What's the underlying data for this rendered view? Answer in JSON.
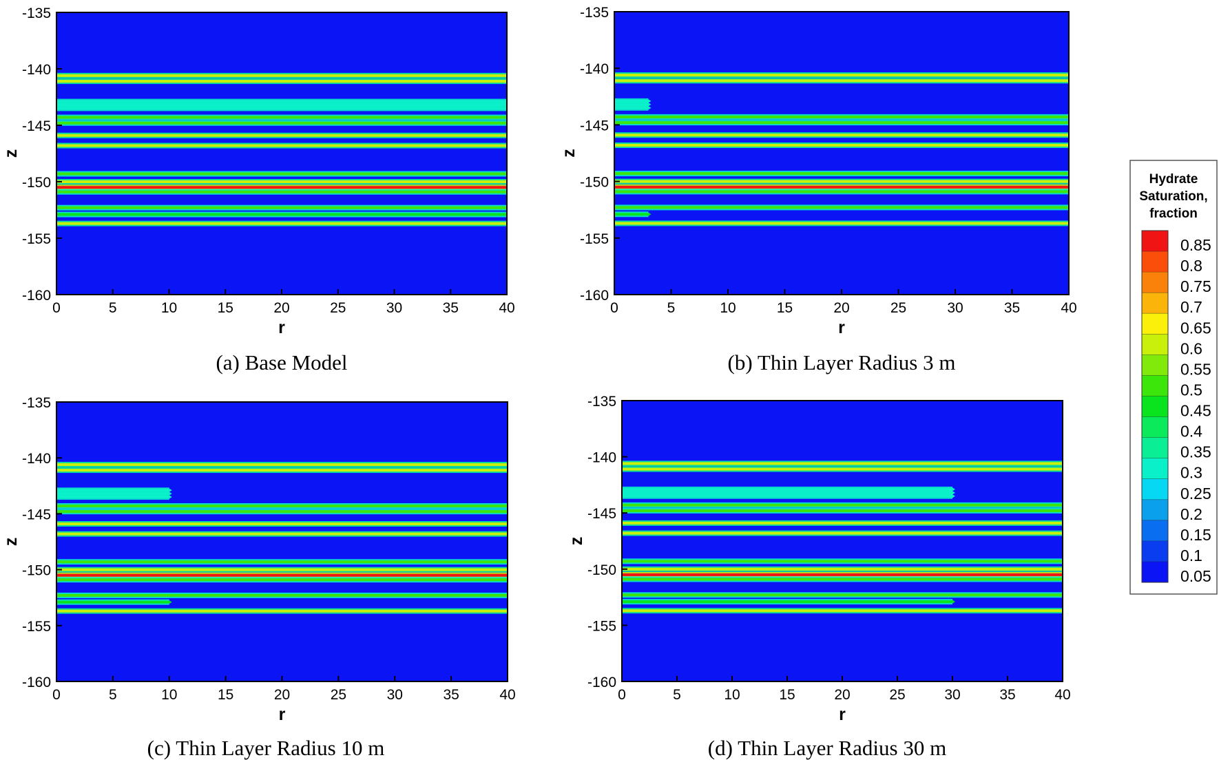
{
  "colors": {
    "background": "#0A14F5",
    "colormap": [
      "#0A14F5",
      "#0A3CF0",
      "#0A6EF0",
      "#0AA0EC",
      "#06D8F4",
      "#0AF0C8",
      "#0AEE96",
      "#0AEA5A",
      "#0AE41E",
      "#3CE60A",
      "#82EA0A",
      "#C8F00A",
      "#FAF00A",
      "#FAB40A",
      "#FA820A",
      "#FA4E0A",
      "#F01414"
    ]
  },
  "legend": {
    "title_lines": [
      "Hydrate",
      "Saturation,",
      "fraction"
    ],
    "levels": [
      "0.85",
      "0.8",
      "0.75",
      "0.7",
      "0.65",
      "0.6",
      "0.55",
      "0.5",
      "0.45",
      "0.4",
      "0.35",
      "0.3",
      "0.25",
      "0.2",
      "0.15",
      "0.1",
      "0.05"
    ]
  },
  "chart_data": [
    {
      "type": "heatmap",
      "caption": "(a) Base Model",
      "xlabel": "r",
      "ylabel": "z",
      "xlim": [
        0,
        40
      ],
      "ylim": [
        -160,
        -135
      ],
      "xticks": [
        0,
        5,
        10,
        15,
        20,
        25,
        30,
        35,
        40
      ],
      "yticks": [
        -135,
        -140,
        -145,
        -150,
        -155,
        -160
      ],
      "thin_layer_radius": 40,
      "layers": [
        {
          "z": -140.6,
          "saturation": 0.55,
          "extent": "full"
        },
        {
          "z": -141.1,
          "saturation": 0.55,
          "extent": "full"
        },
        {
          "z": -142.9,
          "saturation": 0.25,
          "extent": "thin"
        },
        {
          "z": -143.2,
          "saturation": 0.25,
          "extent": "thin"
        },
        {
          "z": -143.5,
          "saturation": 0.25,
          "extent": "thin"
        },
        {
          "z": -144.3,
          "saturation": 0.45,
          "extent": "full"
        },
        {
          "z": -144.8,
          "saturation": 0.45,
          "extent": "full"
        },
        {
          "z": -145.9,
          "saturation": 0.55,
          "extent": "full"
        },
        {
          "z": -146.8,
          "saturation": 0.55,
          "extent": "full"
        },
        {
          "z": -149.3,
          "saturation": 0.45,
          "extent": "full"
        },
        {
          "z": -150.0,
          "saturation": 0.55,
          "extent": "full"
        },
        {
          "z": -150.5,
          "saturation": 0.8,
          "extent": "full"
        },
        {
          "z": -150.9,
          "saturation": 0.45,
          "extent": "full"
        },
        {
          "z": -152.3,
          "saturation": 0.45,
          "extent": "full"
        },
        {
          "z": -152.9,
          "saturation": 0.4,
          "extent": "thin"
        },
        {
          "z": -153.7,
          "saturation": 0.55,
          "extent": "full"
        }
      ]
    },
    {
      "type": "heatmap",
      "caption": "(b) Thin Layer Radius 3 m",
      "xlabel": "r",
      "ylabel": "z",
      "xlim": [
        0,
        40
      ],
      "ylim": [
        -160,
        -135
      ],
      "xticks": [
        0,
        5,
        10,
        15,
        20,
        25,
        30,
        35,
        40
      ],
      "yticks": [
        -135,
        -140,
        -145,
        -150,
        -155,
        -160
      ],
      "thin_layer_radius": 3,
      "layers": [
        {
          "z": -140.6,
          "saturation": 0.55,
          "extent": "full"
        },
        {
          "z": -141.1,
          "saturation": 0.55,
          "extent": "full"
        },
        {
          "z": -142.9,
          "saturation": 0.25,
          "extent": "thin"
        },
        {
          "z": -143.2,
          "saturation": 0.25,
          "extent": "thin"
        },
        {
          "z": -143.5,
          "saturation": 0.25,
          "extent": "thin"
        },
        {
          "z": -144.3,
          "saturation": 0.45,
          "extent": "full"
        },
        {
          "z": -144.8,
          "saturation": 0.45,
          "extent": "full"
        },
        {
          "z": -145.9,
          "saturation": 0.55,
          "extent": "full"
        },
        {
          "z": -146.8,
          "saturation": 0.55,
          "extent": "full"
        },
        {
          "z": -149.3,
          "saturation": 0.45,
          "extent": "full"
        },
        {
          "z": -150.0,
          "saturation": 0.55,
          "extent": "full"
        },
        {
          "z": -150.5,
          "saturation": 0.8,
          "extent": "full"
        },
        {
          "z": -150.9,
          "saturation": 0.45,
          "extent": "full"
        },
        {
          "z": -152.3,
          "saturation": 0.45,
          "extent": "full"
        },
        {
          "z": -152.9,
          "saturation": 0.4,
          "extent": "thin"
        },
        {
          "z": -153.7,
          "saturation": 0.55,
          "extent": "full"
        }
      ]
    },
    {
      "type": "heatmap",
      "caption": "(c) Thin Layer Radius 10 m",
      "xlabel": "r",
      "ylabel": "z",
      "xlim": [
        0,
        40
      ],
      "ylim": [
        -160,
        -135
      ],
      "xticks": [
        0,
        5,
        10,
        15,
        20,
        25,
        30,
        35,
        40
      ],
      "yticks": [
        -135,
        -140,
        -145,
        -150,
        -155,
        -160
      ],
      "thin_layer_radius": 10,
      "layers": [
        {
          "z": -140.6,
          "saturation": 0.55,
          "extent": "full"
        },
        {
          "z": -141.1,
          "saturation": 0.55,
          "extent": "full"
        },
        {
          "z": -142.9,
          "saturation": 0.25,
          "extent": "thin"
        },
        {
          "z": -143.2,
          "saturation": 0.25,
          "extent": "thin"
        },
        {
          "z": -143.5,
          "saturation": 0.25,
          "extent": "thin"
        },
        {
          "z": -144.3,
          "saturation": 0.45,
          "extent": "full"
        },
        {
          "z": -144.8,
          "saturation": 0.45,
          "extent": "full"
        },
        {
          "z": -145.9,
          "saturation": 0.55,
          "extent": "full"
        },
        {
          "z": -146.8,
          "saturation": 0.55,
          "extent": "full"
        },
        {
          "z": -149.3,
          "saturation": 0.45,
          "extent": "full"
        },
        {
          "z": -150.0,
          "saturation": 0.55,
          "extent": "full"
        },
        {
          "z": -150.5,
          "saturation": 0.8,
          "extent": "full"
        },
        {
          "z": -150.9,
          "saturation": 0.45,
          "extent": "full"
        },
        {
          "z": -152.3,
          "saturation": 0.45,
          "extent": "full"
        },
        {
          "z": -152.9,
          "saturation": 0.4,
          "extent": "thin"
        },
        {
          "z": -153.7,
          "saturation": 0.55,
          "extent": "full"
        }
      ]
    },
    {
      "type": "heatmap",
      "caption": "(d) Thin Layer Radius 30 m",
      "xlabel": "r",
      "ylabel": "z",
      "xlim": [
        0,
        40
      ],
      "ylim": [
        -160,
        -135
      ],
      "xticks": [
        0,
        5,
        10,
        15,
        20,
        25,
        30,
        35,
        40
      ],
      "yticks": [
        -135,
        -140,
        -145,
        -150,
        -155,
        -160
      ],
      "thin_layer_radius": 30,
      "layers": [
        {
          "z": -140.6,
          "saturation": 0.55,
          "extent": "full"
        },
        {
          "z": -141.1,
          "saturation": 0.55,
          "extent": "full"
        },
        {
          "z": -142.9,
          "saturation": 0.25,
          "extent": "thin"
        },
        {
          "z": -143.2,
          "saturation": 0.25,
          "extent": "thin"
        },
        {
          "z": -143.5,
          "saturation": 0.25,
          "extent": "thin"
        },
        {
          "z": -144.3,
          "saturation": 0.45,
          "extent": "full"
        },
        {
          "z": -144.8,
          "saturation": 0.45,
          "extent": "full"
        },
        {
          "z": -145.9,
          "saturation": 0.55,
          "extent": "full"
        },
        {
          "z": -146.8,
          "saturation": 0.55,
          "extent": "full"
        },
        {
          "z": -149.3,
          "saturation": 0.45,
          "extent": "full"
        },
        {
          "z": -150.0,
          "saturation": 0.55,
          "extent": "full"
        },
        {
          "z": -150.5,
          "saturation": 0.8,
          "extent": "full"
        },
        {
          "z": -150.9,
          "saturation": 0.45,
          "extent": "full"
        },
        {
          "z": -152.3,
          "saturation": 0.45,
          "extent": "full"
        },
        {
          "z": -152.9,
          "saturation": 0.4,
          "extent": "thin"
        },
        {
          "z": -153.7,
          "saturation": 0.55,
          "extent": "full"
        }
      ]
    }
  ]
}
